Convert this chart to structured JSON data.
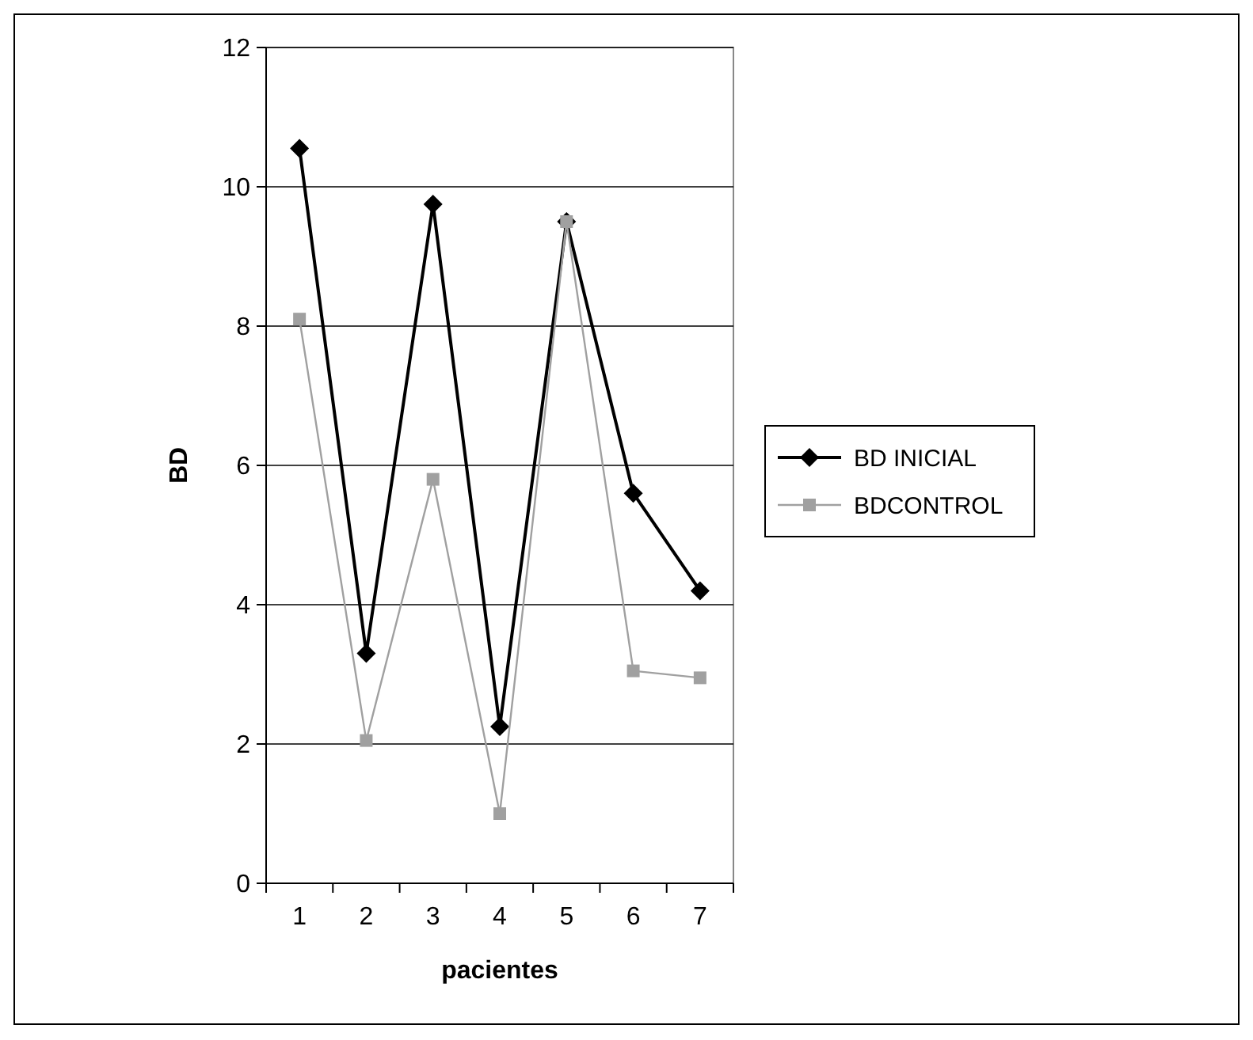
{
  "chart_data": {
    "type": "line",
    "xlabel": "pacientes",
    "ylabel": "BD",
    "categories": [
      "1",
      "2",
      "3",
      "4",
      "5",
      "6",
      "7"
    ],
    "series": [
      {
        "name": "BD INICIAL",
        "color": "#000000",
        "marker": "diamond",
        "values": [
          10.55,
          3.3,
          9.75,
          2.25,
          9.5,
          5.6,
          4.2
        ]
      },
      {
        "name": "BDCONTROL",
        "color": "#a0a0a0",
        "marker": "square",
        "values": [
          8.1,
          2.05,
          5.8,
          1.0,
          9.5,
          3.05,
          2.95
        ]
      }
    ],
    "ylim": [
      0,
      12
    ],
    "yticks": [
      0,
      2,
      4,
      6,
      8,
      10,
      12
    ],
    "grid": "y",
    "legend": "right"
  }
}
